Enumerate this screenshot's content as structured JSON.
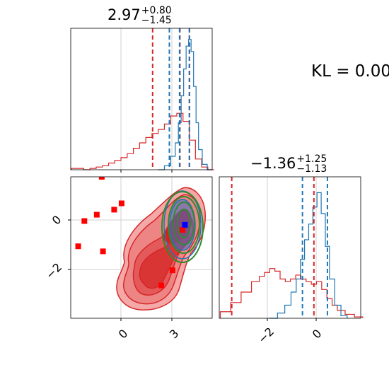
{
  "kl_text": "KL = 0.00",
  "titles": {
    "p1": {
      "main": "2.97",
      "plus": "+0.80",
      "minus": "−1.45"
    },
    "p2": {
      "main": "−1.36",
      "plus": "+1.25",
      "minus": "−1.13"
    }
  },
  "colors": {
    "red": "#d62728",
    "blue": "#1f77b4",
    "green": "#2e8b2e",
    "red_fill": "#f08a8a",
    "grid": "#d0d0d0"
  },
  "chart_data": [
    {
      "type": "histogram",
      "panel": "marginal-1",
      "xlim": [
        -5.8,
        5.6
      ],
      "series": [
        {
          "name": "red",
          "centers": [
            -5.5,
            -5,
            -4.5,
            -4,
            -3.5,
            -3,
            -2.5,
            -2,
            -1.5,
            -1,
            -0.5,
            0,
            0.5,
            1,
            1.5,
            2,
            2.5,
            3,
            3.5,
            4,
            4.5,
            5,
            5.5
          ],
          "values": [
            0.01,
            0.01,
            0.0,
            0.01,
            0.02,
            0.03,
            0.05,
            0.07,
            0.09,
            0.12,
            0.16,
            0.2,
            0.24,
            0.27,
            0.3,
            0.34,
            0.4,
            0.42,
            0.36,
            0.22,
            0.08,
            0.02,
            0.0
          ]
        },
        {
          "name": "blue",
          "centers": [
            1.5,
            2,
            2.5,
            2.75,
            3,
            3.2,
            3.4,
            3.6,
            3.8,
            4,
            4.2,
            4.4,
            4.6,
            5,
            5.4
          ],
          "values": [
            0.0,
            0.03,
            0.1,
            0.2,
            0.35,
            0.55,
            0.75,
            0.92,
            0.97,
            0.88,
            0.62,
            0.35,
            0.15,
            0.04,
            0.0
          ]
        }
      ],
      "vlines": {
        "red": [
          0.8,
          3.0,
          3.76
        ],
        "blue": [
          2.15,
          2.97,
          3.77
        ]
      }
    },
    {
      "type": "scatter",
      "panel": "joint",
      "xlim": [
        -5.8,
        5.6
      ],
      "ylim": [
        -3.9,
        1.7
      ],
      "xticks": [
        0,
        3
      ],
      "yticks": [
        0,
        -2
      ],
      "red_points": [
        [
          -3.3,
          1.7
        ],
        [
          -4.7,
          -0.05
        ],
        [
          -3.7,
          0.2
        ],
        [
          -2.3,
          0.4
        ],
        [
          -1.7,
          0.65
        ],
        [
          -5.2,
          -1.05
        ],
        [
          -3.2,
          -1.25
        ],
        [
          1.5,
          -2.6
        ],
        [
          2.4,
          -2.0
        ],
        [
          3.2,
          -0.4
        ]
      ],
      "blue_points": [
        [
          3.4,
          -0.2
        ]
      ],
      "red_density_levels": 5,
      "green_contour_levels": 4
    },
    {
      "type": "histogram",
      "panel": "marginal-2",
      "xlim": [
        -4.8,
        2.0
      ],
      "xticks": [
        -2,
        0
      ],
      "series": [
        {
          "name": "red",
          "centers": [
            -4.5,
            -4,
            -3.5,
            -3,
            -2.75,
            -2.5,
            -2.25,
            -2,
            -1.75,
            -1.5,
            -1.25,
            -1,
            -0.75,
            -0.5,
            -0.25,
            0,
            0.25,
            0.5,
            0.75,
            1,
            1.5,
            1.9
          ],
          "values": [
            0.05,
            0.12,
            0.2,
            0.28,
            0.32,
            0.35,
            0.38,
            0.36,
            0.3,
            0.28,
            0.3,
            0.33,
            0.3,
            0.28,
            0.26,
            0.28,
            0.22,
            0.15,
            0.1,
            0.06,
            0.03,
            0.01
          ]
        },
        {
          "name": "blue",
          "centers": [
            -2.2,
            -1.8,
            -1.5,
            -1.2,
            -1,
            -0.8,
            -0.6,
            -0.4,
            -0.2,
            0,
            0.2,
            0.4,
            0.6,
            0.9,
            1.2
          ],
          "values": [
            0.0,
            0.04,
            0.1,
            0.2,
            0.3,
            0.45,
            0.6,
            0.72,
            0.85,
            0.96,
            0.8,
            0.55,
            0.3,
            0.1,
            0.02
          ]
        }
      ],
      "vlines": {
        "red": [
          -4.2,
          -0.25
        ],
        "blue": [
          -0.8,
          0.4
        ]
      }
    }
  ]
}
